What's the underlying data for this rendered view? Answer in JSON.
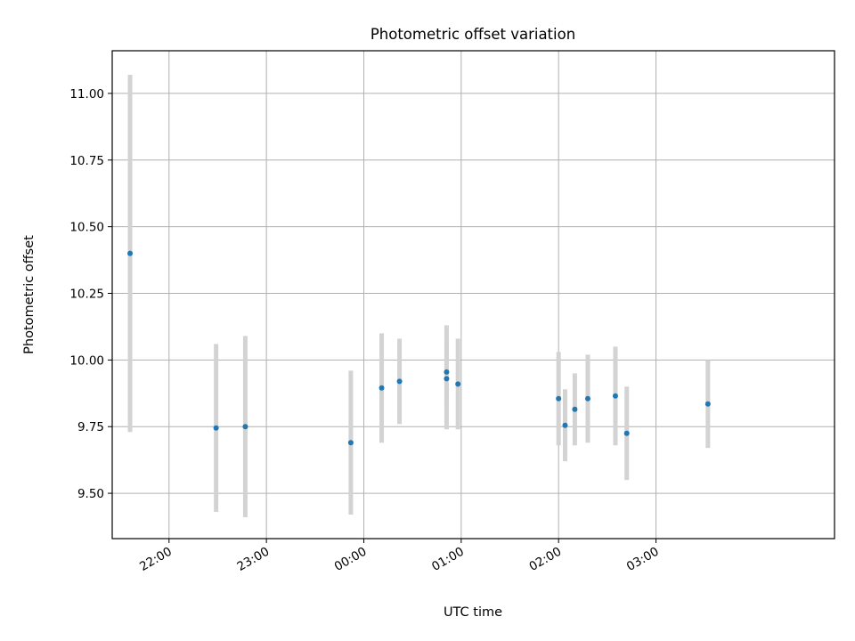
{
  "chart_data": {
    "type": "scatter",
    "title": "Photometric offset variation",
    "xlabel": "UTC time",
    "ylabel": "Photometric offset",
    "x_axis_kind": "time (HH:MM, UTC)",
    "xlim": [
      "21:25",
      "04:50"
    ],
    "ylim": [
      9.33,
      11.16
    ],
    "yticks": [
      9.5,
      9.75,
      10.0,
      10.25,
      10.5,
      10.75,
      11.0
    ],
    "ytick_labels": [
      "9.50",
      "9.75",
      "10.00",
      "10.25",
      "10.50",
      "10.75",
      "11.00"
    ],
    "xticks": [
      "22:00",
      "23:00",
      "00:00",
      "01:00",
      "02:00",
      "03:00"
    ],
    "grid": true,
    "points": [
      {
        "x": "21:36",
        "y": 10.4,
        "y_low": 9.73,
        "y_high": 11.07
      },
      {
        "x": "22:29",
        "y": 9.745,
        "y_low": 9.43,
        "y_high": 10.06
      },
      {
        "x": "22:47",
        "y": 9.75,
        "y_low": 9.41,
        "y_high": 10.09
      },
      {
        "x": "23:52",
        "y": 9.69,
        "y_low": 9.42,
        "y_high": 9.96
      },
      {
        "x": "00:11",
        "y": 9.895,
        "y_low": 9.69,
        "y_high": 10.1
      },
      {
        "x": "00:22",
        "y": 9.92,
        "y_low": 9.76,
        "y_high": 10.08
      },
      {
        "x": "00:51",
        "y": 9.955,
        "y_low": 9.83,
        "y_high": 10.08
      },
      {
        "x": "00:51",
        "y": 9.93,
        "y_low": 9.74,
        "y_high": 10.13
      },
      {
        "x": "00:58",
        "y": 9.91,
        "y_low": 9.74,
        "y_high": 10.08
      },
      {
        "x": "02:00",
        "y": 9.855,
        "y_low": 9.68,
        "y_high": 10.03
      },
      {
        "x": "02:04",
        "y": 9.755,
        "y_low": 9.62,
        "y_high": 9.89
      },
      {
        "x": "02:10",
        "y": 9.815,
        "y_low": 9.68,
        "y_high": 9.95
      },
      {
        "x": "02:18",
        "y": 9.855,
        "y_low": 9.69,
        "y_high": 10.02
      },
      {
        "x": "02:35",
        "y": 9.865,
        "y_low": 9.68,
        "y_high": 10.05
      },
      {
        "x": "02:42",
        "y": 9.725,
        "y_low": 9.55,
        "y_high": 9.9
      },
      {
        "x": "03:32",
        "y": 9.835,
        "y_low": 9.67,
        "y_high": 10.0
      }
    ],
    "marker_color": "#1f77b4",
    "errorbar_color": "#d3d3d3"
  }
}
